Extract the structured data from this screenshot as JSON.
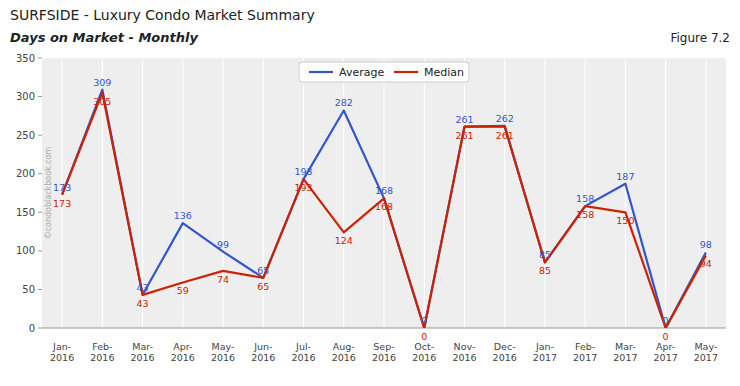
{
  "chart_data": {
    "type": "line",
    "title": "SURFSIDE - Luxury Condo Market Summary",
    "subtitle": "Days on Market - Monthly",
    "annotations": [
      "Figure 7.2",
      "©condoblackbook.com"
    ],
    "categories": [
      "Jan-\n2016",
      "Feb-\n2016",
      "Mar-\n2016",
      "Apr-\n2016",
      "May-\n2016",
      "Jun-\n2016",
      "Jul-\n2016",
      "Aug-\n2016",
      "Sep-\n2016",
      "Oct-\n2016",
      "Nov-\n2016",
      "Dec-\n2016",
      "Jan-\n2017",
      "Feb-\n2017",
      "Mar-\n2017",
      "Apr-\n2017",
      "May-\n2017"
    ],
    "series": [
      {
        "name": "Average",
        "color": "#3355cc",
        "values": [
          173,
          309,
          43,
          136,
          99,
          65,
          193,
          282,
          168,
          0,
          261,
          262,
          85,
          158,
          187,
          0,
          98
        ]
      },
      {
        "name": "Median",
        "color": "#cc2200",
        "values": [
          173,
          305,
          43,
          59,
          74,
          65,
          193,
          124,
          168,
          0,
          261,
          261,
          85,
          158,
          150,
          0,
          94
        ]
      }
    ],
    "ylim": [
      0,
      350
    ],
    "yticks": [
      0,
      50,
      100,
      150,
      200,
      250,
      300,
      350
    ],
    "grid": "x",
    "legend": "top",
    "data_labels": true
  }
}
